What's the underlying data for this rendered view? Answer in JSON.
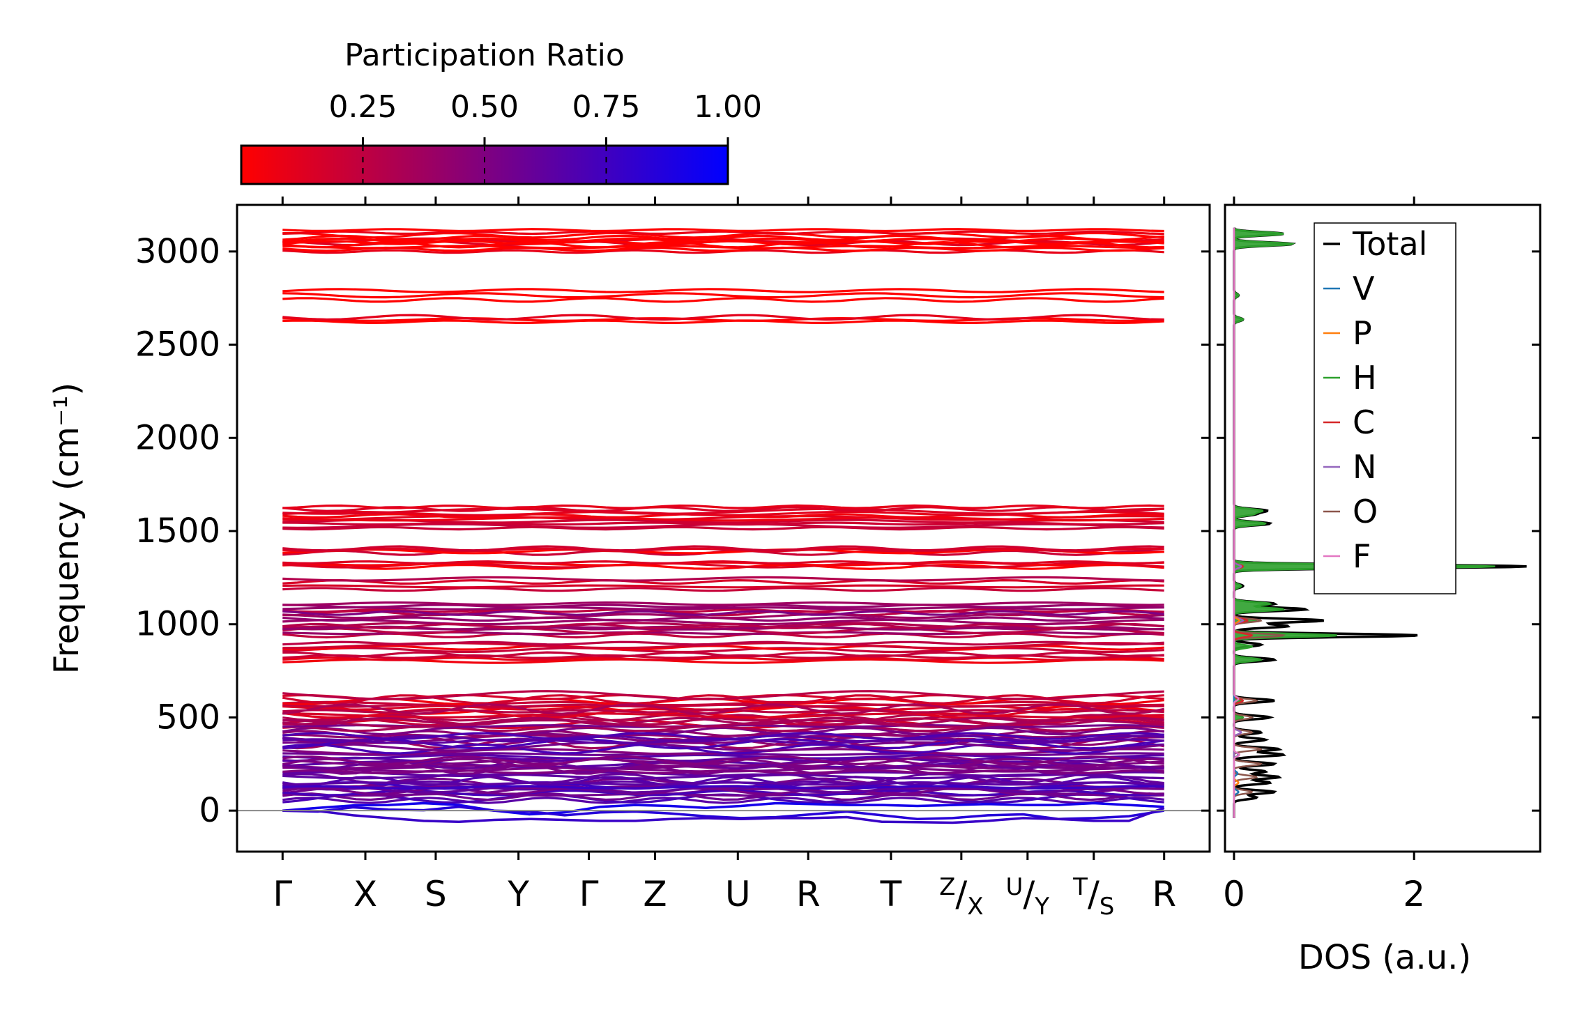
{
  "colorbar": {
    "label": "Participation Ratio",
    "ticks": [
      0.25,
      0.5,
      0.75,
      1.0
    ],
    "tick_labels": [
      "0.25",
      "0.50",
      "0.75",
      "1.00"
    ],
    "range": [
      0.0,
      1.0
    ],
    "color_low": "#ff0000",
    "color_high": "#0000ff"
  },
  "chart_data": [
    {
      "type": "line",
      "name": "phonon-band-structure",
      "ylabel": "Frequency (cm⁻¹)",
      "ylim": [
        -220,
        3250
      ],
      "yticks": [
        0,
        500,
        1000,
        1500,
        2000,
        2500,
        3000
      ],
      "ytick_labels": [
        "0",
        "500",
        "1000",
        "1500",
        "2000",
        "2500",
        "3000"
      ],
      "kpoints": [
        {
          "label": "Γ",
          "position": 0.0
        },
        {
          "label": "X",
          "position": 1.0
        },
        {
          "label": "S",
          "position": 1.85
        },
        {
          "label": "Y",
          "position": 2.85
        },
        {
          "label": "Γ",
          "position": 3.7
        },
        {
          "label": "Z",
          "position": 4.5
        },
        {
          "label": "U",
          "position": 5.5
        },
        {
          "label": "R",
          "position": 6.35
        },
        {
          "label": "T",
          "position": 7.35
        },
        {
          "label": "Z/X",
          "sup": "Z",
          "sub": "X",
          "position": 8.2
        },
        {
          "label": "U/Y",
          "sup": "U",
          "sub": "Y",
          "position": 9.0
        },
        {
          "label": "T/S",
          "sup": "T",
          "sub": "S",
          "position": 9.8
        },
        {
          "label": "R",
          "position": 10.65
        }
      ],
      "xlim": [
        -0.55,
        11.2
      ],
      "band_groups": [
        {
          "center": 3080,
          "count": 6,
          "spread": 35,
          "participation": 0.0
        },
        {
          "center": 3030,
          "count": 6,
          "spread": 30,
          "participation": 0.0
        },
        {
          "center": 2765,
          "count": 3,
          "spread": 25,
          "participation": 0.02
        },
        {
          "center": 2635,
          "count": 3,
          "spread": 12,
          "participation": 0.02
        },
        {
          "center": 1600,
          "count": 6,
          "spread": 30,
          "participation": 0.1
        },
        {
          "center": 1540,
          "count": 5,
          "spread": 25,
          "participation": 0.12
        },
        {
          "center": 1395,
          "count": 4,
          "spread": 12,
          "participation": 0.08
        },
        {
          "center": 1320,
          "count": 4,
          "spread": 12,
          "participation": 0.08
        },
        {
          "center": 1235,
          "count": 2,
          "spread": 8,
          "participation": 0.2
        },
        {
          "center": 1195,
          "count": 2,
          "spread": 8,
          "participation": 0.25
        },
        {
          "center": 1085,
          "count": 5,
          "spread": 25,
          "participation": 0.3
        },
        {
          "center": 1020,
          "count": 6,
          "spread": 40,
          "participation": 0.4
        },
        {
          "center": 965,
          "count": 5,
          "spread": 25,
          "participation": 0.3
        },
        {
          "center": 880,
          "count": 4,
          "spread": 18,
          "participation": 0.15
        },
        {
          "center": 820,
          "count": 4,
          "spread": 18,
          "participation": 0.15
        },
        {
          "center": 580,
          "count": 8,
          "spread": 40,
          "participation": 0.15
        },
        {
          "center": 505,
          "count": 8,
          "spread": 40,
          "participation": 0.25
        },
        {
          "center": 420,
          "count": 10,
          "spread": 60,
          "participation": 0.45
        },
        {
          "center": 310,
          "count": 14,
          "spread": 90,
          "participation": 0.6
        },
        {
          "center": 190,
          "count": 14,
          "spread": 80,
          "participation": 0.55
        },
        {
          "center": 100,
          "count": 10,
          "spread": 45,
          "participation": 0.65
        }
      ],
      "acoustic_bands": [
        {
          "name": "acoustic-1",
          "participation": 0.92,
          "values": [
            0,
            15,
            28,
            30,
            40,
            30,
            0,
            -20,
            -10,
            20,
            30,
            25,
            15,
            25,
            40,
            35,
            30,
            30,
            25,
            30,
            35,
            30,
            30,
            40,
            30,
            20
          ]
        },
        {
          "name": "acoustic-2",
          "participation": 0.85,
          "values": [
            0,
            -5,
            18,
            5,
            2,
            20,
            0,
            -5,
            -25,
            -10,
            -5,
            -15,
            -30,
            -40,
            -35,
            -20,
            -5,
            -25,
            -45,
            -40,
            -25,
            -20,
            -45,
            -40,
            -30,
            0
          ]
        },
        {
          "name": "acoustic-3",
          "participation": 0.78,
          "values": [
            0,
            -2,
            -25,
            -40,
            -55,
            -60,
            -50,
            -45,
            -50,
            -55,
            -55,
            -45,
            -40,
            -45,
            -40,
            -40,
            -35,
            -60,
            -62,
            -65,
            -55,
            -40,
            -45,
            -55,
            -55,
            15
          ]
        }
      ],
      "zero_line": 0
    },
    {
      "type": "line",
      "name": "density-of-states",
      "xlabel": "DOS (a.u.)",
      "xlim": [
        -0.1,
        3.4
      ],
      "xticks": [
        0,
        2
      ],
      "xtick_labels": [
        "0",
        "2"
      ],
      "ylim": [
        -220,
        3250
      ],
      "series": [
        {
          "name": "Total",
          "color": "#000000",
          "peaks": [
            [
              3095,
              0.55
            ],
            [
              3040,
              0.65
            ],
            [
              2765,
              0.05
            ],
            [
              2635,
              0.1
            ],
            [
              1610,
              0.35
            ],
            [
              1590,
              0.22
            ],
            [
              1540,
              0.4
            ],
            [
              1310,
              3.25
            ],
            [
              1205,
              0.1
            ],
            [
              1110,
              0.45
            ],
            [
              1080,
              0.8
            ],
            [
              1020,
              1.0
            ],
            [
              990,
              0.6
            ],
            [
              940,
              2.05
            ],
            [
              890,
              0.3
            ],
            [
              810,
              0.45
            ],
            [
              590,
              0.45
            ],
            [
              500,
              0.4
            ],
            [
              420,
              0.3
            ],
            [
              380,
              0.35
            ],
            [
              330,
              0.5
            ],
            [
              300,
              0.55
            ],
            [
              250,
              0.45
            ],
            [
              210,
              0.35
            ],
            [
              180,
              0.5
            ],
            [
              150,
              0.4
            ],
            [
              100,
              0.45
            ],
            [
              70,
              0.25
            ]
          ]
        },
        {
          "name": "V",
          "color": "#1f77b4",
          "peaks": [
            [
              300,
              0.05
            ],
            [
              200,
              0.04
            ],
            [
              100,
              0.05
            ]
          ]
        },
        {
          "name": "P",
          "color": "#ff7f0e",
          "peaks": [
            [
              1020,
              0.06
            ],
            [
              300,
              0.05
            ],
            [
              150,
              0.05
            ]
          ]
        },
        {
          "name": "H",
          "color": "#2ca02c",
          "peaks": [
            [
              3095,
              0.55
            ],
            [
              3040,
              0.65
            ],
            [
              2765,
              0.05
            ],
            [
              2635,
              0.1
            ],
            [
              1610,
              0.3
            ],
            [
              1590,
              0.2
            ],
            [
              1540,
              0.35
            ],
            [
              1310,
              2.9
            ],
            [
              1205,
              0.08
            ],
            [
              1110,
              0.4
            ],
            [
              1080,
              0.55
            ],
            [
              1020,
              0.25
            ],
            [
              940,
              1.15
            ],
            [
              880,
              0.2
            ],
            [
              810,
              0.3
            ],
            [
              590,
              0.08
            ],
            [
              500,
              0.1
            ]
          ]
        },
        {
          "name": "C",
          "color": "#d62728",
          "peaks": [
            [
              1310,
              0.1
            ],
            [
              1020,
              0.15
            ],
            [
              940,
              0.2
            ],
            [
              590,
              0.1
            ]
          ]
        },
        {
          "name": "N",
          "color": "#9467bd",
          "peaks": [
            [
              1310,
              0.08
            ],
            [
              1020,
              0.1
            ],
            [
              420,
              0.08
            ]
          ]
        },
        {
          "name": "O",
          "color": "#8c564b",
          "peaks": [
            [
              1020,
              0.3
            ],
            [
              940,
              0.55
            ],
            [
              590,
              0.25
            ],
            [
              500,
              0.2
            ],
            [
              420,
              0.2
            ],
            [
              330,
              0.3
            ],
            [
              250,
              0.3
            ],
            [
              180,
              0.25
            ],
            [
              100,
              0.2
            ]
          ]
        },
        {
          "name": "F",
          "color": "#e377c2",
          "peaks": [
            [
              600,
              0.05
            ],
            [
              300,
              0.06
            ]
          ]
        }
      ]
    }
  ]
}
